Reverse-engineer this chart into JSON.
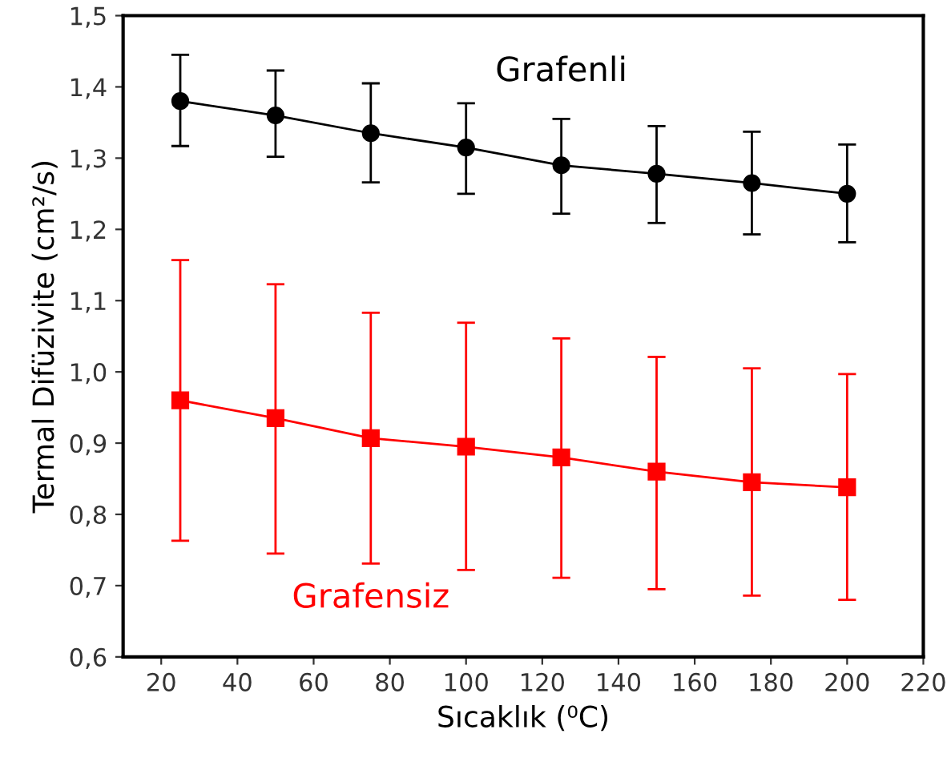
{
  "chart_data": {
    "type": "line",
    "xlabel": "Sıcaklık (⁰C)",
    "ylabel": "Termal Difüzivite (cm²/s)",
    "x": [
      25,
      50,
      75,
      100,
      125,
      150,
      175,
      200
    ],
    "series": [
      {
        "name": "Grafenli",
        "color": "#000000",
        "marker": "circle",
        "values": [
          1.38,
          1.36,
          1.335,
          1.315,
          1.29,
          1.278,
          1.265,
          1.25
        ],
        "errors": [
          [
            1.317,
            1.445
          ],
          [
            1.302,
            1.423
          ],
          [
            1.266,
            1.405
          ],
          [
            1.25,
            1.377
          ],
          [
            1.222,
            1.355
          ],
          [
            1.209,
            1.345
          ],
          [
            1.193,
            1.337
          ],
          [
            1.182,
            1.319
          ]
        ]
      },
      {
        "name": "Grafensiz",
        "color": "#ff0000",
        "marker": "square",
        "values": [
          0.96,
          0.935,
          0.907,
          0.895,
          0.88,
          0.86,
          0.845,
          0.838
        ],
        "errors": [
          [
            0.763,
            1.157
          ],
          [
            0.745,
            1.123
          ],
          [
            0.731,
            1.083
          ],
          [
            0.722,
            1.069
          ],
          [
            0.711,
            1.047
          ],
          [
            0.695,
            1.021
          ],
          [
            0.686,
            1.005
          ],
          [
            0.68,
            0.997
          ]
        ]
      }
    ],
    "xlim": [
      10,
      220
    ],
    "xticks": [
      20,
      40,
      60,
      80,
      100,
      120,
      140,
      160,
      180,
      200,
      220
    ],
    "ylim": [
      0.6,
      1.5
    ],
    "yticks": [
      {
        "value": 0.6,
        "label": "0,6"
      },
      {
        "value": 0.7,
        "label": "0,7"
      },
      {
        "value": 0.8,
        "label": "0,8"
      },
      {
        "value": 0.9,
        "label": "0,9"
      },
      {
        "value": 1.0,
        "label": "1,0"
      },
      {
        "value": 1.1,
        "label": "1,1"
      },
      {
        "value": 1.2,
        "label": "1,2"
      },
      {
        "value": 1.3,
        "label": "1,3"
      },
      {
        "value": 1.4,
        "label": "1,4"
      },
      {
        "value": 1.5,
        "label": "1,5"
      }
    ],
    "grid": false,
    "legend": false
  }
}
